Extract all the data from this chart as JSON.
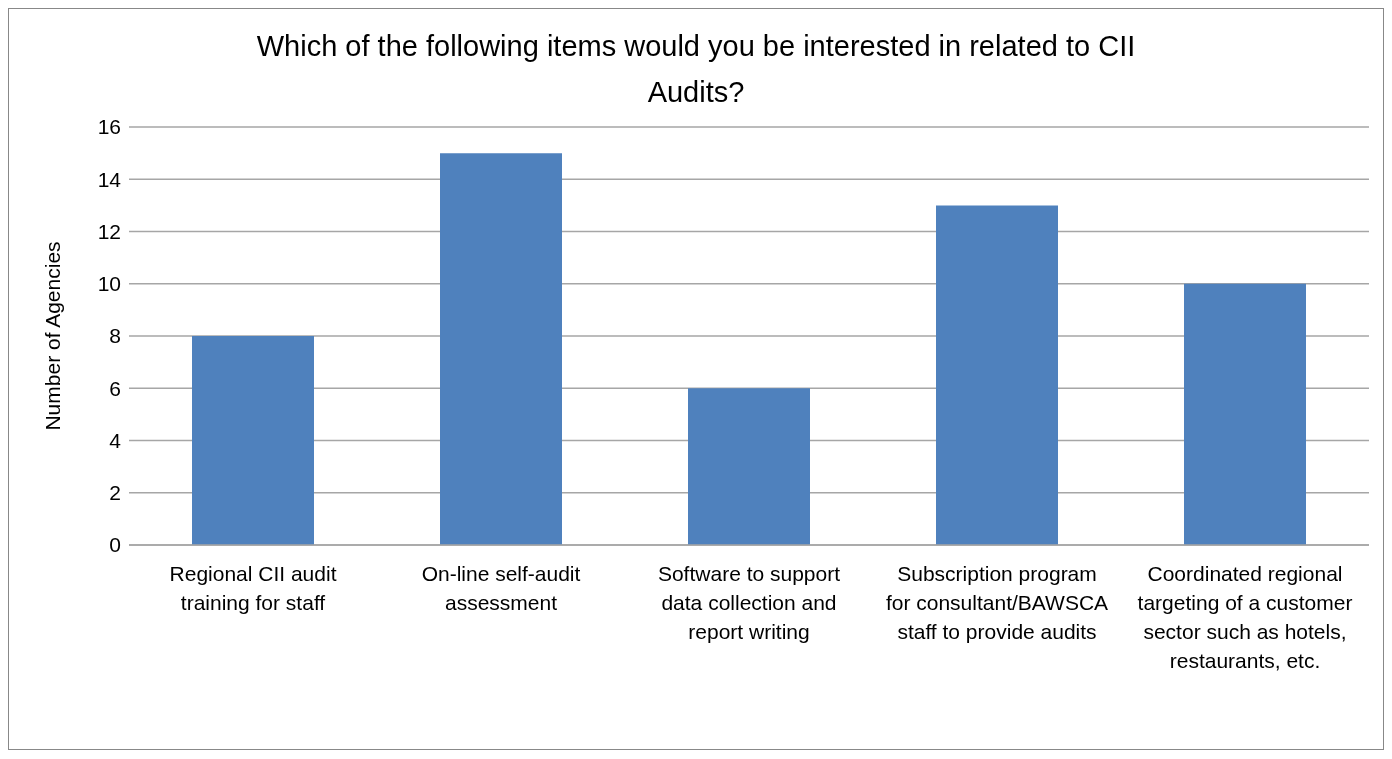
{
  "chart_data": {
    "type": "bar",
    "title": "Which of the following items would you be interested in related to CII Audits?",
    "ylabel": "Number of Agencies",
    "categories": [
      "Regional CII audit training for staff",
      "On-line self-audit assessment",
      "Software to support data collection and report writing",
      "Subscription program for consultant/BAWSCA staff to provide audits",
      "Coordinated regional targeting of a customer sector such as hotels, restaurants, etc."
    ],
    "values": [
      8,
      15,
      6,
      13,
      10
    ],
    "color": "#4f81bd",
    "ylim": [
      0,
      16
    ],
    "yticks": [
      0,
      2,
      4,
      6,
      8,
      10,
      12,
      14,
      16
    ],
    "grid": "y",
    "legend": false
  }
}
